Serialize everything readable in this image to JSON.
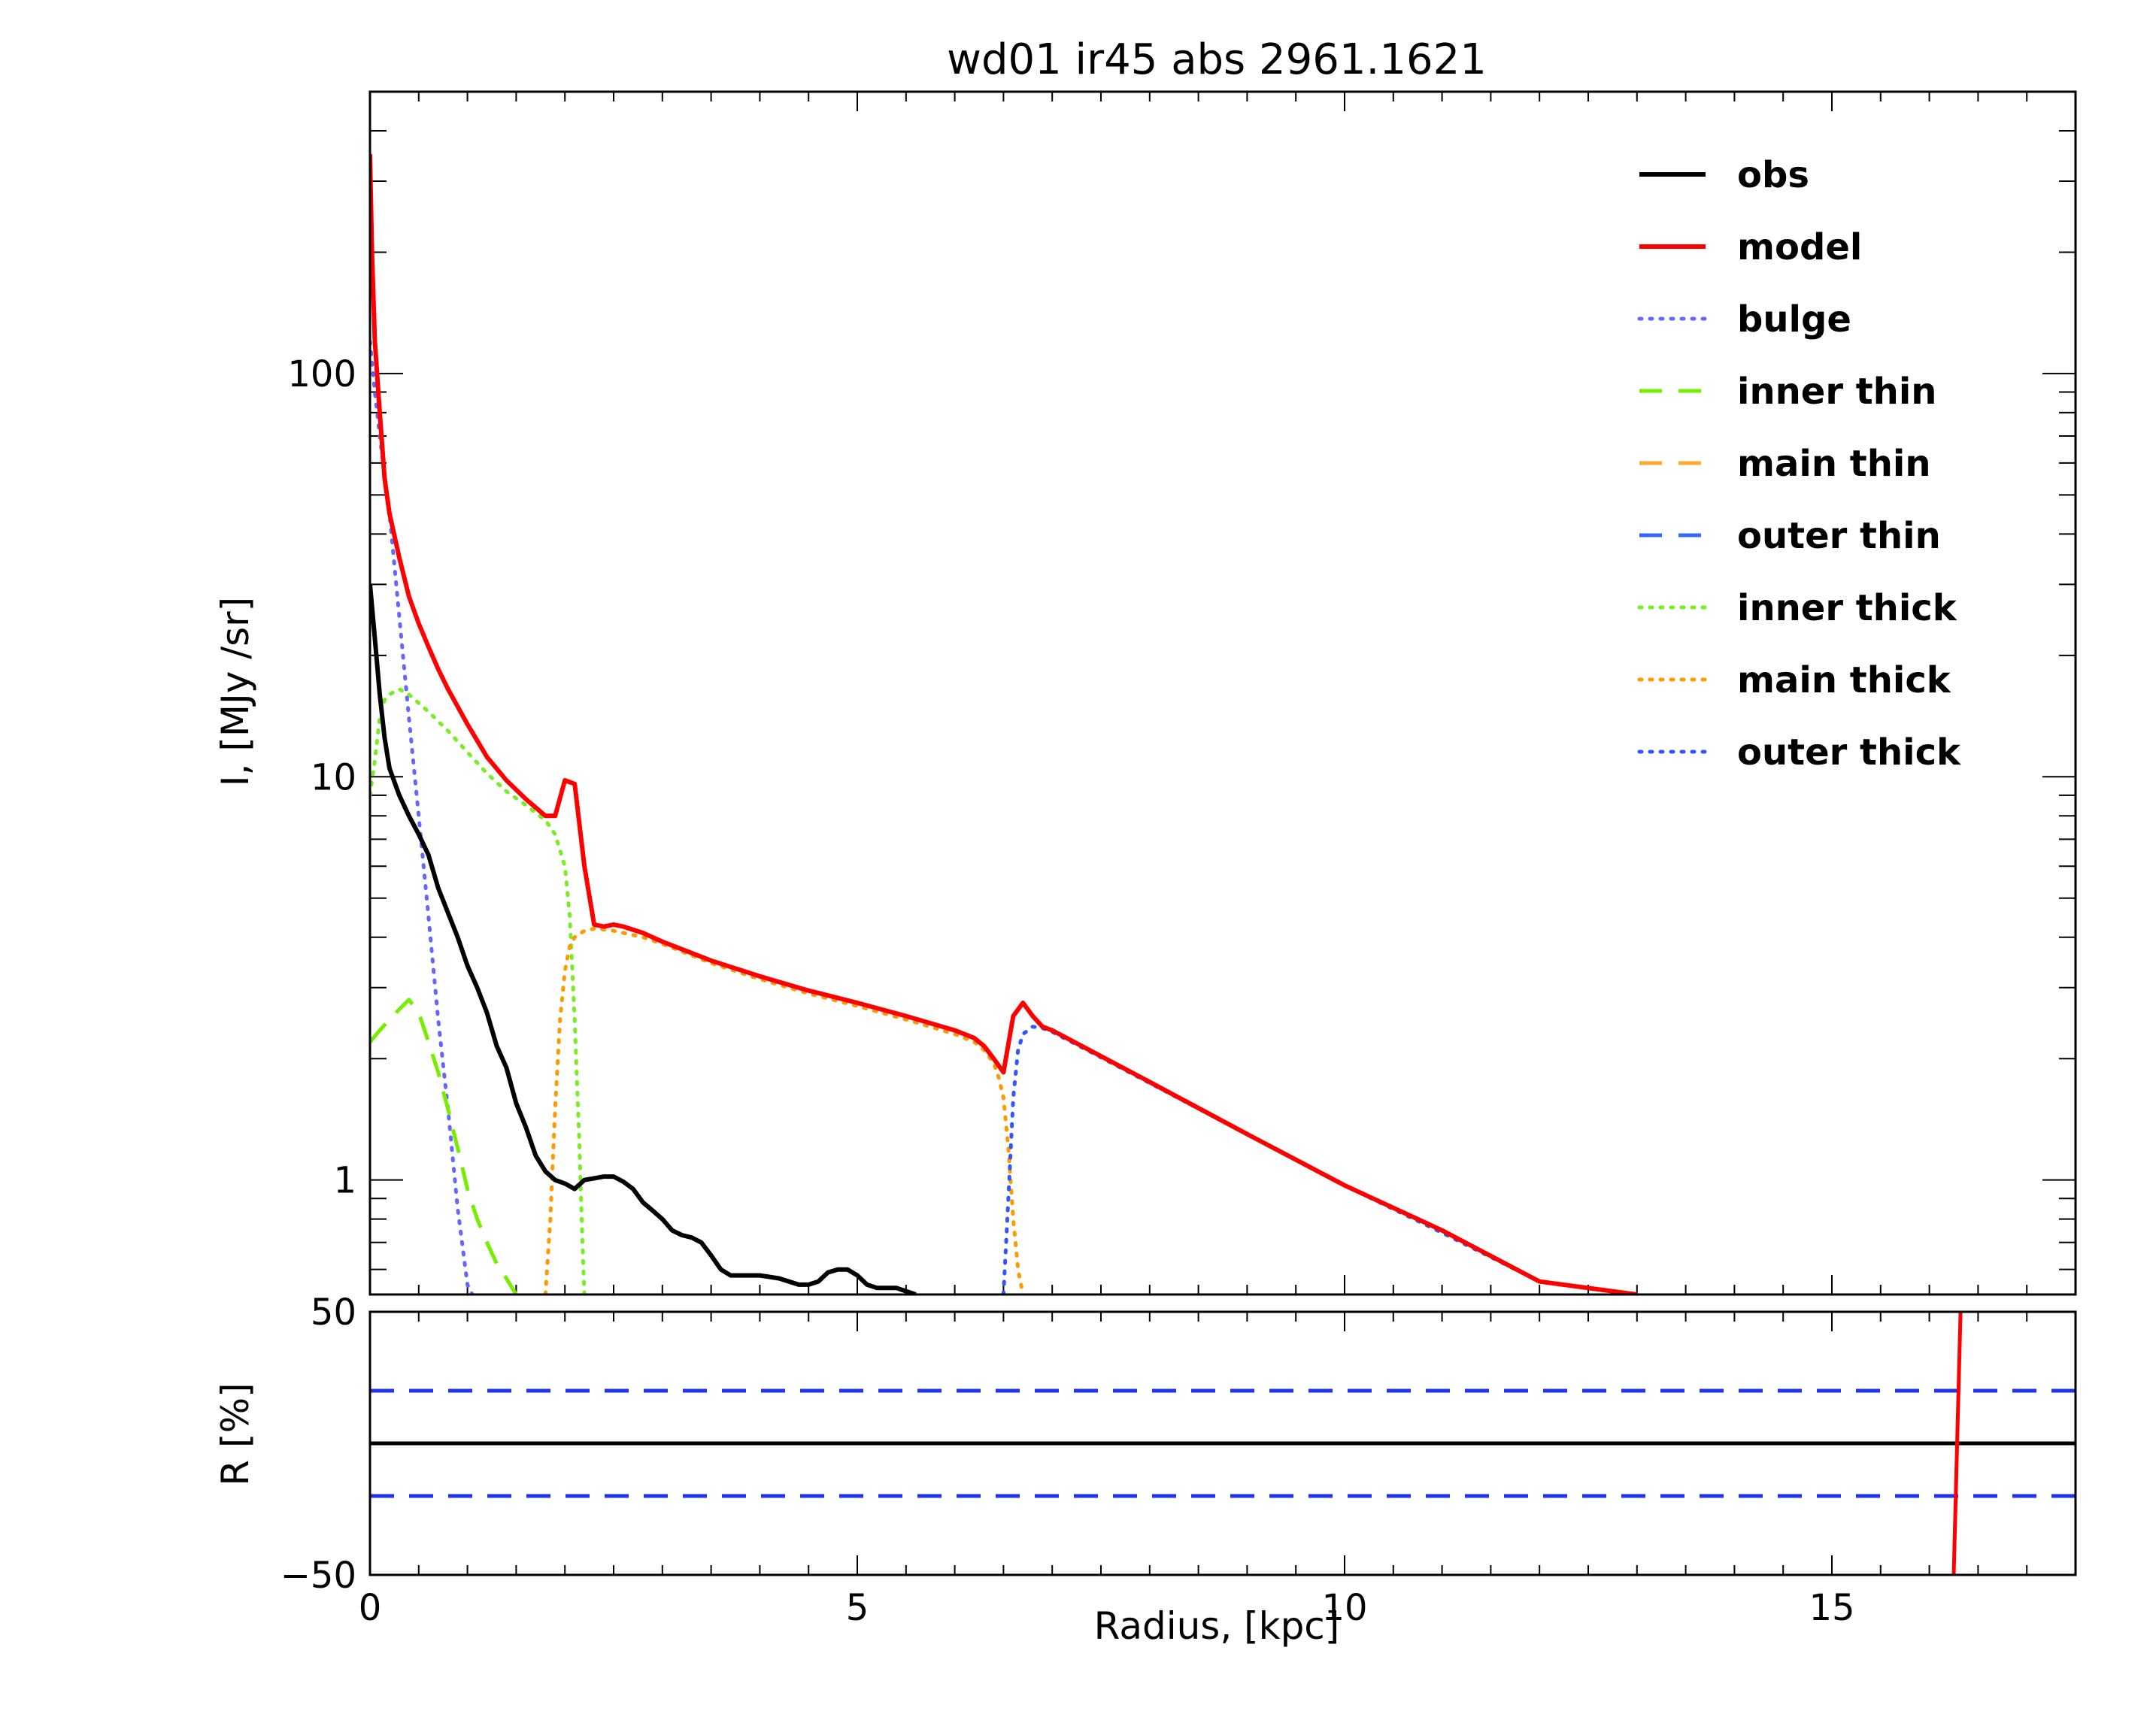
{
  "chart_data": [
    {
      "type": "line",
      "title": "wd01 ir45 abs 2961.1621",
      "xlabel": "",
      "ylabel": "I, [MJy /sr]",
      "xlim": [
        0,
        17.5
      ],
      "ylim": [
        0.52,
        500
      ],
      "yscale": "log",
      "yticks": [
        1,
        10,
        100
      ],
      "ytick_labels": [
        "1",
        "10",
        "100"
      ],
      "grid": false,
      "legend_position": "top-right",
      "series": [
        {
          "name": "obs",
          "color": "#000000",
          "dash": "solid",
          "x": [
            0.0,
            0.05,
            0.1,
            0.15,
            0.2,
            0.3,
            0.4,
            0.5,
            0.6,
            0.7,
            0.8,
            0.9,
            1.0,
            1.1,
            1.2,
            1.3,
            1.4,
            1.5,
            1.6,
            1.7,
            1.8,
            1.9,
            2.0,
            2.1,
            2.2,
            2.3,
            2.4,
            2.5,
            2.6,
            2.7,
            2.8,
            2.9,
            3.0,
            3.1,
            3.2,
            3.3,
            3.4,
            3.5,
            3.6,
            3.7,
            3.8,
            3.9,
            4.0,
            4.2,
            4.4,
            4.5,
            4.6,
            4.7,
            4.8,
            4.9,
            5.0,
            5.1,
            5.2,
            5.3,
            5.4,
            5.5,
            5.6
          ],
          "y": [
            30,
            22,
            16,
            12.5,
            10.5,
            9.0,
            8.0,
            7.2,
            6.4,
            5.3,
            4.6,
            4.0,
            3.4,
            3.0,
            2.6,
            2.15,
            1.9,
            1.55,
            1.35,
            1.15,
            1.05,
            1.0,
            0.98,
            0.95,
            1.0,
            1.01,
            1.02,
            1.02,
            0.99,
            0.95,
            0.88,
            0.84,
            0.8,
            0.75,
            0.73,
            0.72,
            0.7,
            0.65,
            0.6,
            0.58,
            0.58,
            0.58,
            0.58,
            0.57,
            0.55,
            0.55,
            0.56,
            0.59,
            0.6,
            0.6,
            0.58,
            0.55,
            0.54,
            0.54,
            0.54,
            0.53,
            0.52
          ]
        },
        {
          "name": "model",
          "color": "#ff0000",
          "dash": "solid",
          "x": [
            0.0,
            0.02,
            0.05,
            0.1,
            0.15,
            0.2,
            0.3,
            0.4,
            0.5,
            0.6,
            0.7,
            0.8,
            1.0,
            1.2,
            1.4,
            1.6,
            1.8,
            1.9,
            2.0,
            2.1,
            2.2,
            2.3,
            2.4,
            2.5,
            2.6,
            2.8,
            3.0,
            3.5,
            4.0,
            4.5,
            5.0,
            5.5,
            6.0,
            6.2,
            6.3,
            6.4,
            6.5,
            6.6,
            6.7,
            6.8,
            6.9,
            7.0,
            8.0,
            9.0,
            10.0,
            11.0,
            12.0,
            13.0
          ],
          "y": [
            350,
            200,
            120,
            80,
            55,
            45,
            35,
            28,
            24,
            21,
            18.5,
            16.5,
            13.5,
            11.2,
            9.8,
            8.8,
            8.0,
            8.0,
            9.8,
            9.6,
            6.0,
            4.3,
            4.25,
            4.3,
            4.25,
            4.1,
            3.9,
            3.5,
            3.2,
            2.95,
            2.75,
            2.55,
            2.35,
            2.25,
            2.15,
            2.0,
            1.85,
            2.55,
            2.75,
            2.55,
            2.4,
            2.35,
            1.75,
            1.3,
            0.97,
            0.75,
            0.56,
            0.52
          ]
        },
        {
          "name": "bulge",
          "color": "#6666ff",
          "dash": "dotted",
          "x": [
            0.0,
            0.05,
            0.1,
            0.2,
            0.3,
            0.4,
            0.5,
            0.6,
            0.7,
            0.8,
            0.9,
            1.0,
            1.05
          ],
          "y": [
            120,
            90,
            70,
            45,
            25,
            14,
            8,
            4.5,
            2.5,
            1.5,
            0.85,
            0.55,
            0.52
          ]
        },
        {
          "name": "inner thin",
          "color": "#77ee00",
          "dash": "dashed",
          "x": [
            0.0,
            0.1,
            0.2,
            0.3,
            0.4,
            0.5,
            0.6,
            0.7,
            0.8,
            0.9,
            1.0,
            1.1,
            1.2,
            1.3,
            1.4,
            1.5
          ],
          "y": [
            2.2,
            2.35,
            2.5,
            2.65,
            2.8,
            2.6,
            2.2,
            1.85,
            1.5,
            1.2,
            0.95,
            0.8,
            0.7,
            0.62,
            0.57,
            0.52
          ]
        },
        {
          "name": "main thin",
          "color": "#ffaa33",
          "dash": "dashed",
          "x": [],
          "y": []
        },
        {
          "name": "outer thin",
          "color": "#3366ff",
          "dash": "dashed",
          "x": [],
          "y": []
        },
        {
          "name": "inner thick",
          "color": "#77ee22",
          "dash": "dotted",
          "x": [
            0.0,
            0.05,
            0.1,
            0.15,
            0.2,
            0.3,
            0.4,
            0.6,
            0.8,
            1.0,
            1.2,
            1.4,
            1.6,
            1.8,
            1.9,
            2.0,
            2.05,
            2.1,
            2.15,
            2.18,
            2.2
          ],
          "y": [
            9,
            11,
            14,
            15.5,
            16,
            16.5,
            16,
            14.5,
            13,
            11.5,
            10.2,
            9.2,
            8.5,
            7.8,
            7.2,
            6.0,
            4.5,
            2.5,
            1.2,
            0.7,
            0.52
          ]
        },
        {
          "name": "main thick",
          "color": "#ff9900",
          "dash": "dotted",
          "x": [
            1.8,
            1.85,
            1.9,
            1.95,
            2.0,
            2.05,
            2.1,
            2.2,
            2.3,
            2.4,
            2.5,
            2.6,
            2.8,
            3.0,
            3.5,
            4.0,
            4.5,
            5.0,
            5.5,
            6.0,
            6.2,
            6.3,
            6.4,
            6.45,
            6.5,
            6.55,
            6.6,
            6.65,
            6.7
          ],
          "y": [
            0.52,
            0.8,
            1.5,
            2.5,
            3.3,
            3.8,
            4.0,
            4.15,
            4.2,
            4.18,
            4.15,
            4.1,
            4.0,
            3.85,
            3.45,
            3.15,
            2.9,
            2.7,
            2.5,
            2.3,
            2.2,
            2.1,
            1.95,
            1.8,
            1.6,
            1.2,
            0.8,
            0.6,
            0.52
          ]
        },
        {
          "name": "outer thick",
          "color": "#3355ff",
          "dash": "dotted",
          "x": [
            6.5,
            6.55,
            6.6,
            6.65,
            6.7,
            6.8,
            6.9,
            7.0,
            8.0,
            9.0,
            10.0,
            11.0,
            12.0,
            13.0
          ],
          "y": [
            0.52,
            0.9,
            1.6,
            2.1,
            2.3,
            2.4,
            2.38,
            2.33,
            1.74,
            1.3,
            0.97,
            0.74,
            0.56,
            0.52
          ]
        }
      ]
    },
    {
      "type": "line",
      "title": "",
      "xlabel": "Radius, [kpc]",
      "ylabel": "R [%]",
      "xlim": [
        0,
        17.5
      ],
      "ylim": [
        -50,
        50
      ],
      "xticks": [
        0,
        5,
        10,
        15
      ],
      "xtick_labels": [
        "0",
        "5",
        "10",
        "15"
      ],
      "yticks": [
        -50,
        50
      ],
      "ytick_labels": [
        "−50",
        "50"
      ],
      "grid": false,
      "series": [
        {
          "color": "#000000",
          "dash": "solid",
          "x": [
            0,
            17.5
          ],
          "y": [
            0,
            0
          ]
        },
        {
          "color": "#2233ee",
          "dash": "dashed",
          "x": [
            0,
            17.5
          ],
          "y": [
            20,
            20
          ]
        },
        {
          "color": "#2233ee",
          "dash": "dashed",
          "x": [
            0,
            17.5
          ],
          "y": [
            -20,
            -20
          ]
        },
        {
          "color": "#ff0000",
          "dash": "solid",
          "x": [
            16.25,
            16.32
          ],
          "y": [
            -50,
            50
          ]
        }
      ]
    }
  ]
}
